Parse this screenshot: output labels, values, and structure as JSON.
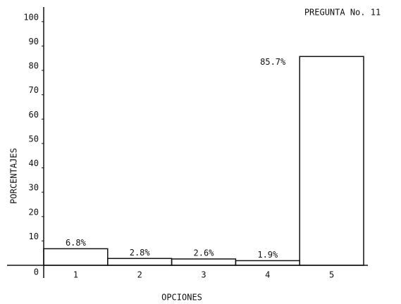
{
  "chart_data": {
    "type": "bar",
    "title": "PREGUNTA No. 11",
    "x_label": "OPCIONES",
    "y_label": "PORCENTAJES",
    "categories": [
      "1",
      "2",
      "3",
      "4",
      "5"
    ],
    "values": [
      6.8,
      2.8,
      2.6,
      1.9,
      85.7
    ],
    "value_labels": [
      "6.8%",
      "2.8%",
      "2.6%",
      "1.9%",
      "85.7%"
    ],
    "color": "#ffffff",
    "ylim": [
      0,
      106
    ],
    "yticks": [
      0,
      10,
      20,
      30,
      40,
      50,
      60,
      70,
      80,
      90,
      100
    ],
    "grid": false
  }
}
